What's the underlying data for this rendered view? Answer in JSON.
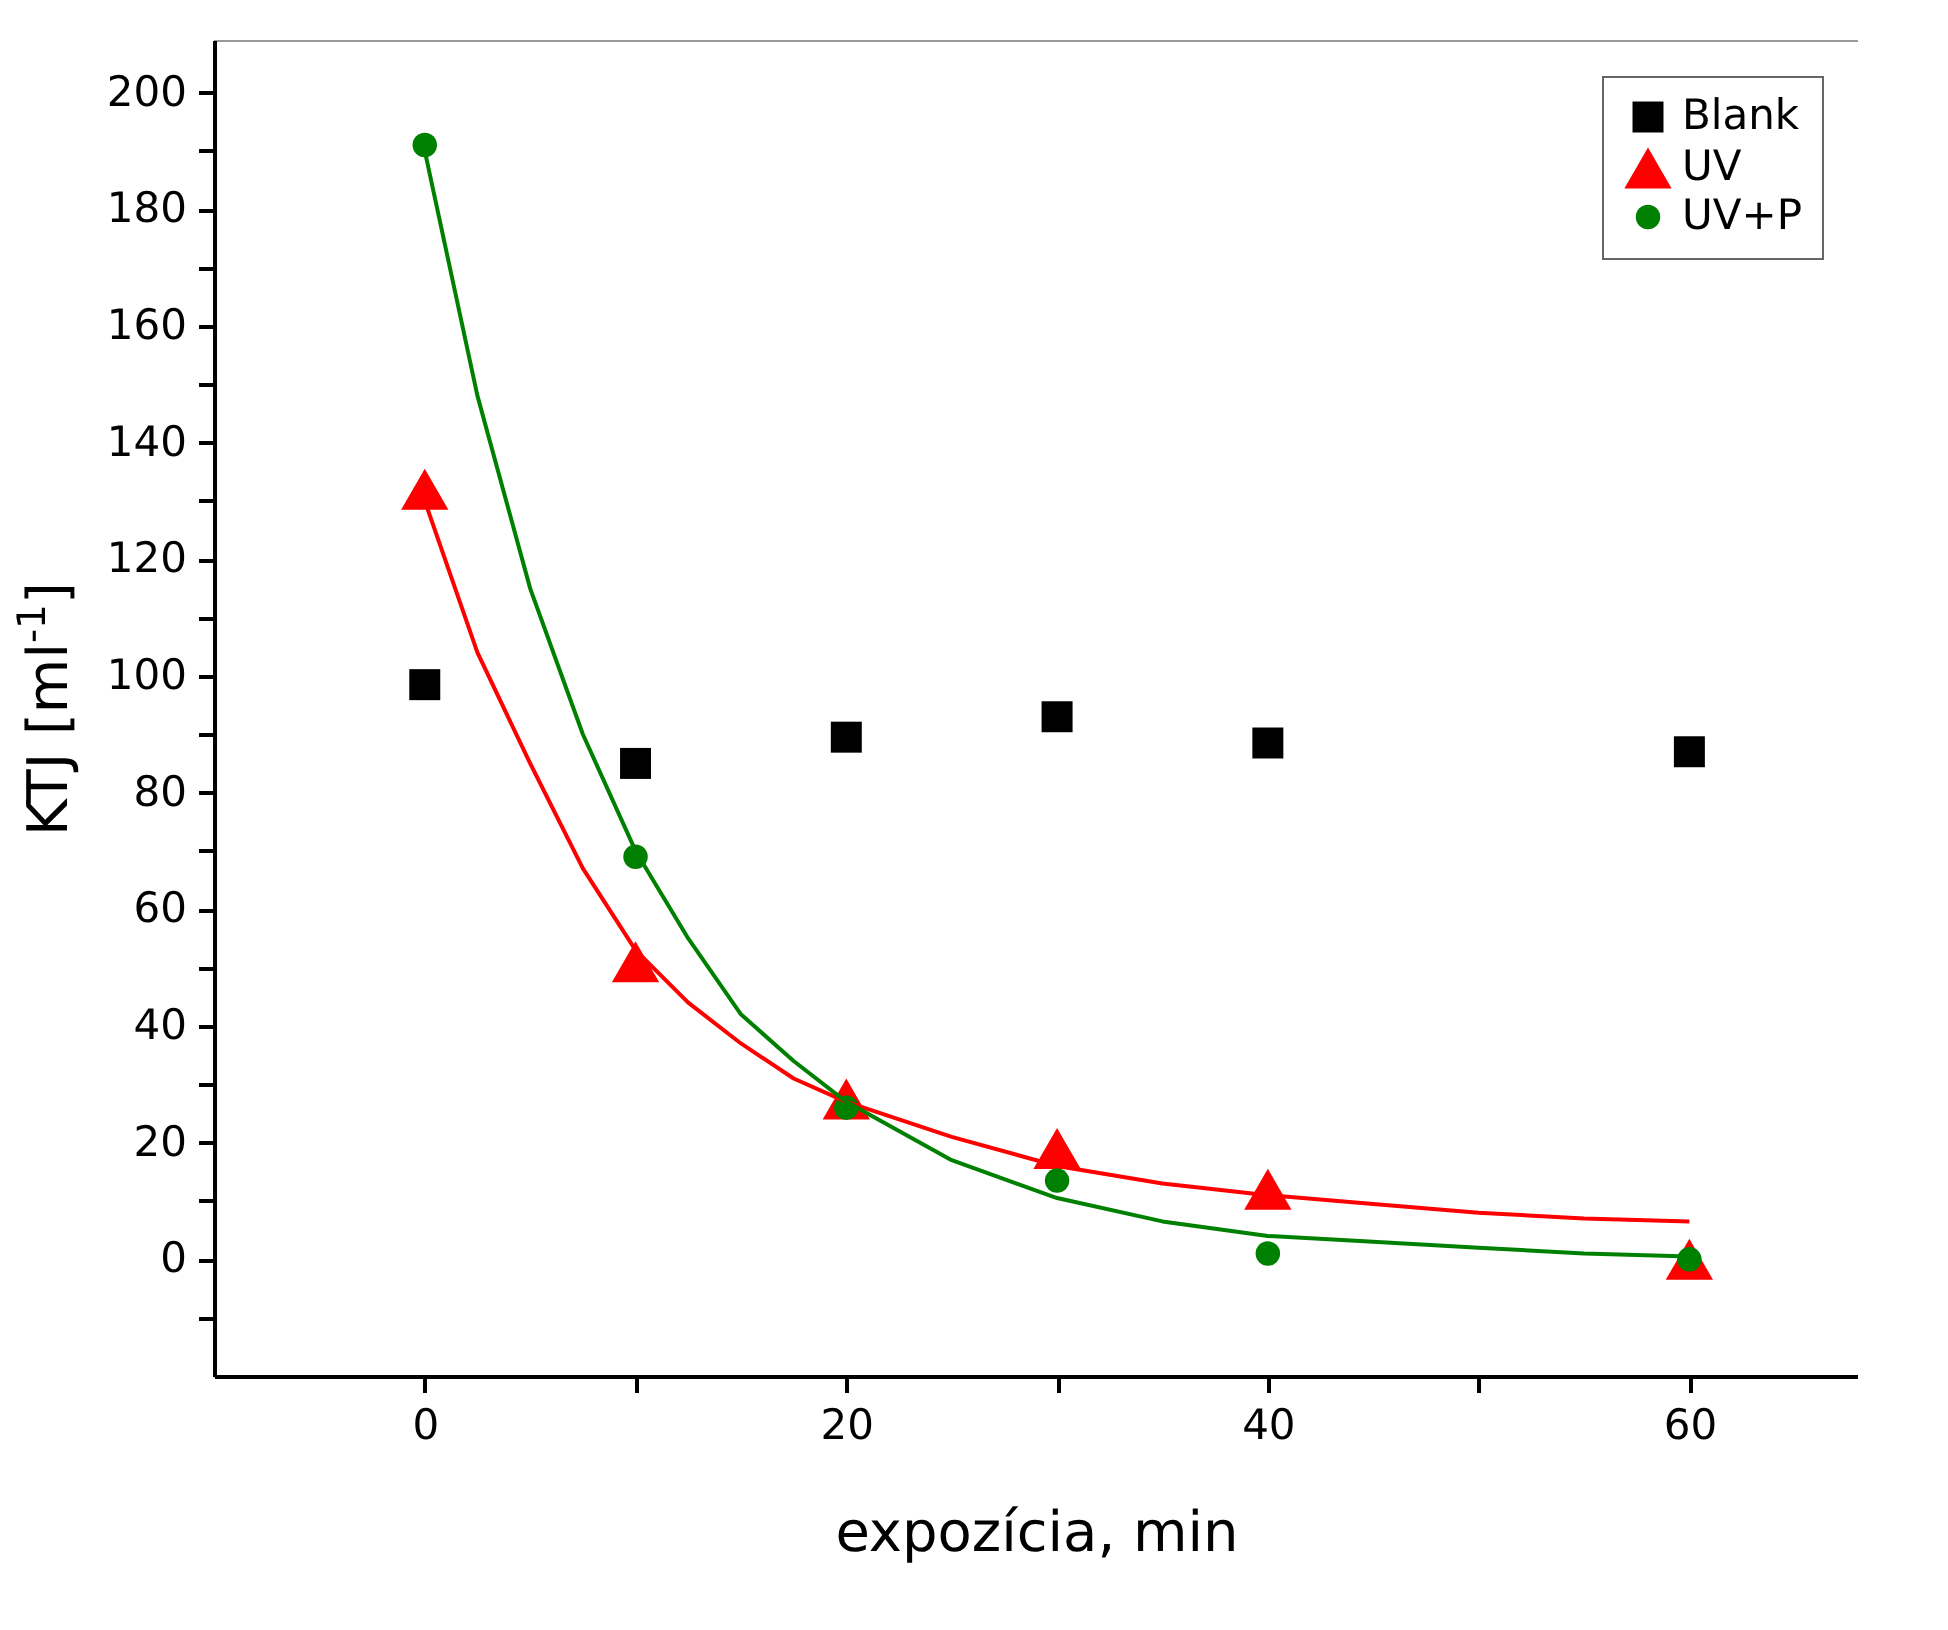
{
  "chart_data": {
    "type": "scatter",
    "xlabel": "expozícia, min",
    "ylabel": "KTJ [ml$^{-1}$]",
    "xlim": [
      -10,
      68
    ],
    "ylim": [
      -20,
      209
    ],
    "xticks": [
      0,
      {
        "value": 10,
        "label": null
      },
      20,
      {
        "value": 30,
        "label": null
      },
      40,
      {
        "value": 50,
        "label": null
      },
      60
    ],
    "yticks": [
      {
        "value": -10,
        "label": null
      },
      0,
      {
        "value": 10,
        "label": null
      },
      20,
      {
        "value": 30,
        "label": null
      },
      40,
      {
        "value": 50,
        "label": null
      },
      60,
      {
        "value": 70,
        "label": null
      },
      80,
      {
        "value": 90,
        "label": null
      },
      100,
      {
        "value": 110,
        "label": null
      },
      120,
      {
        "value": 130,
        "label": null
      },
      140,
      {
        "value": 150,
        "label": null
      },
      160,
      {
        "value": 170,
        "label": null
      },
      180,
      {
        "value": 190,
        "label": null
      },
      200
    ],
    "grid": false,
    "legend": "top right",
    "series": [
      {
        "name": "Blank",
        "color": "#000000",
        "marker": "square",
        "x": [
          0,
          10,
          20,
          30,
          40,
          60
        ],
        "values": [
          98.5,
          85,
          89.5,
          93,
          88.5,
          87
        ]
      },
      {
        "name": "UV",
        "color": "#ff0000",
        "marker": "triangle",
        "x": [
          0,
          10,
          20,
          30,
          40,
          60
        ],
        "values": [
          132,
          51,
          27.5,
          19,
          12,
          0
        ]
      },
      {
        "name": "UV+P",
        "color": "#008000",
        "marker": "circle",
        "x": [
          0,
          10,
          20,
          30,
          40,
          60
        ],
        "values": [
          191,
          69,
          26,
          13.5,
          1,
          0
        ]
      },
      {
        "type": "line",
        "color": "#ff0000",
        "x": [
          0,
          2.5,
          5,
          7.5,
          10,
          12.5,
          15,
          17.5,
          20,
          25,
          30,
          35,
          40,
          45,
          50,
          55,
          60
        ],
        "values": [
          130,
          104,
          85,
          67,
          53,
          44,
          37,
          31,
          27,
          21,
          16,
          13,
          11,
          9.5,
          8,
          7,
          6.5
        ]
      },
      {
        "type": "line",
        "color": "#008000",
        "x": [
          0,
          2.5,
          5,
          7.5,
          10,
          12.5,
          15,
          17.5,
          20,
          25,
          30,
          35,
          40,
          45,
          50,
          55,
          60
        ],
        "values": [
          190,
          148,
          115,
          90,
          70,
          55,
          42,
          34,
          27,
          17,
          10.5,
          6.5,
          4,
          3,
          2,
          1,
          0.5
        ]
      }
    ]
  }
}
